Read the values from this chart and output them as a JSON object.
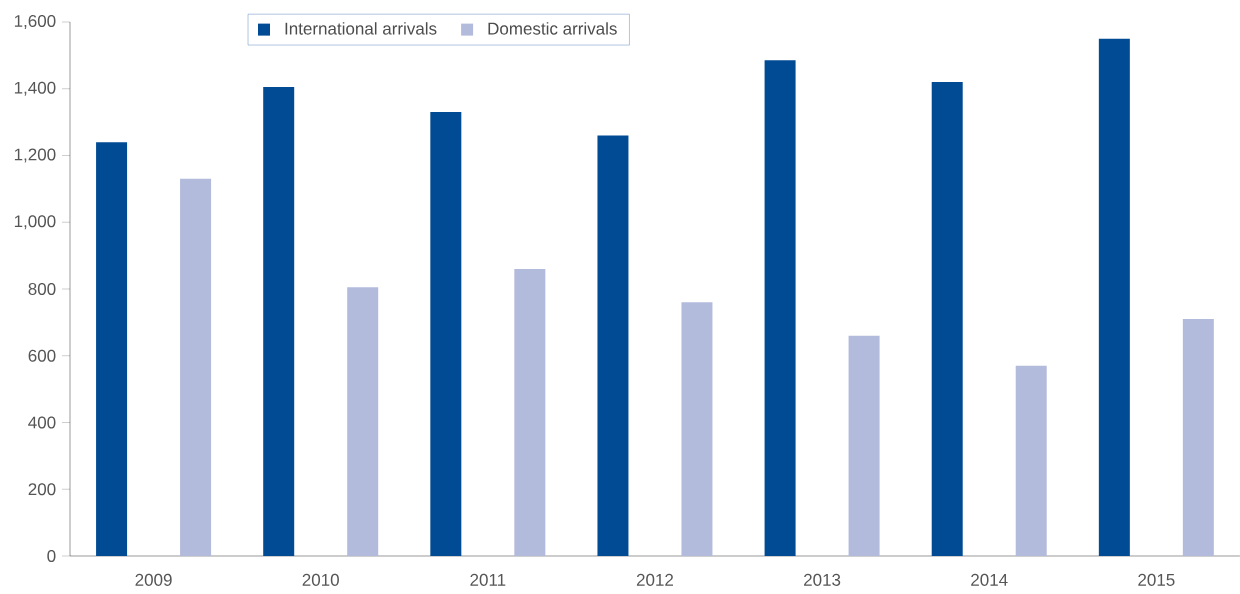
{
  "chart_data": {
    "type": "bar",
    "categories": [
      "2009",
      "2010",
      "2011",
      "2012",
      "2013",
      "2014",
      "2015"
    ],
    "series": [
      {
        "name": "International arrivals",
        "color": "#004b93",
        "values": [
          1240,
          1405,
          1330,
          1260,
          1485,
          1420,
          1550
        ]
      },
      {
        "name": "Domestic arrivals",
        "color": "#b3bbdc",
        "values": [
          1130,
          805,
          860,
          760,
          660,
          570,
          710
        ]
      }
    ],
    "ylim": [
      0,
      1600
    ],
    "yticks": [
      0,
      200,
      400,
      600,
      800,
      {
        "value": 1000,
        "label": "1,000"
      },
      {
        "value": 1200,
        "label": "1,200"
      },
      {
        "value": 1400,
        "label": "1,400"
      },
      {
        "value": 1600,
        "label": "1,600"
      }
    ],
    "legend": "top left"
  }
}
